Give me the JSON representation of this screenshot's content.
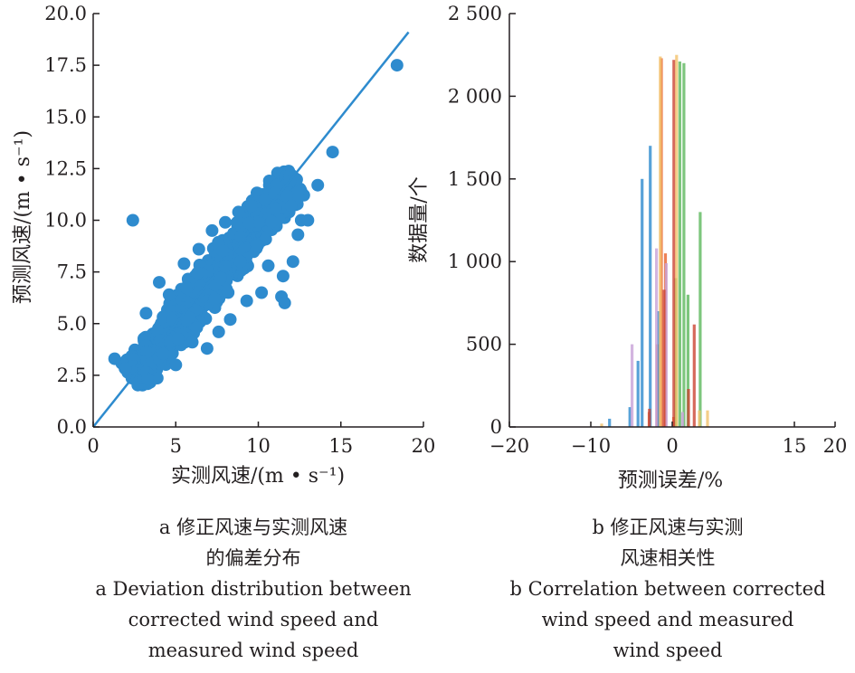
{
  "chart_data": [
    {
      "type": "scatter",
      "panel": "a",
      "xlabel": "实测风速/(m • s⁻¹)",
      "ylabel": "预测风速/(m • s⁻¹)",
      "xlim": [
        0,
        20
      ],
      "ylim": [
        0,
        20
      ],
      "x_ticks": [
        "0",
        "5",
        "10",
        "15",
        "20"
      ],
      "y_ticks": [
        "0.0",
        "2.5",
        "5.0",
        "7.5",
        "10.0",
        "12.5",
        "15.0",
        "17.5",
        "20.0"
      ],
      "point_color": "#2e8bce",
      "series": [
        {
          "name": "",
          "points": [
            [
              1.3,
              3.3
            ],
            [
              2.4,
              10.0
            ],
            [
              3.2,
              5.5
            ],
            [
              4.0,
              7.0
            ],
            [
              4.6,
              6.4
            ],
            [
              5.0,
              3.0
            ],
            [
              5.5,
              7.9
            ],
            [
              6.0,
              4.1
            ],
            [
              6.4,
              8.6
            ],
            [
              6.9,
              3.8
            ],
            [
              7.2,
              9.5
            ],
            [
              7.6,
              4.6
            ],
            [
              8.0,
              9.9
            ],
            [
              8.3,
              5.2
            ],
            [
              8.8,
              10.4
            ],
            [
              9.3,
              6.1
            ],
            [
              9.6,
              10.7
            ],
            [
              10.2,
              6.5
            ],
            [
              10.4,
              11.0
            ],
            [
              10.6,
              7.8
            ],
            [
              11.0,
              11.3
            ],
            [
              11.4,
              6.3
            ],
            [
              11.6,
              6.0
            ],
            [
              11.5,
              7.3
            ],
            [
              11.9,
              11.9
            ],
            [
              12.0,
              10.7
            ],
            [
              12.4,
              9.3
            ],
            [
              12.6,
              10.0
            ],
            [
              12.1,
              8.0
            ],
            [
              13.0,
              10.0
            ],
            [
              13.6,
              11.7
            ],
            [
              14.5,
              13.3
            ],
            [
              18.4,
              17.5
            ]
          ]
        }
      ],
      "fit_line": {
        "x": [
          0,
          19.1
        ],
        "y": [
          0,
          19.1
        ]
      }
    },
    {
      "type": "bar",
      "panel": "b",
      "xlabel": "预测误差/%",
      "ylabel": "数据量/个",
      "xlim": [
        -20,
        20
      ],
      "ylim": [
        0,
        2500
      ],
      "x_ticks": [
        "−20",
        "−10",
        "0",
        "15",
        "20"
      ],
      "y_ticks": [
        "0",
        "500",
        "1 000",
        "1 500",
        "2 000",
        "2 500"
      ],
      "series": [
        {
          "name": "",
          "color": "#e8622c",
          "bins": [
            [
              -2.5,
              90
            ],
            [
              -1.5,
              500
            ],
            [
              -1.0,
              2230
            ],
            [
              -0.5,
              1050
            ],
            [
              0.5,
              60
            ]
          ]
        },
        {
          "name": "",
          "color": "#2e8bce",
          "bins": [
            [
              -7.5,
              50
            ],
            [
              -5.0,
              120
            ],
            [
              -3.5,
              1500
            ],
            [
              -2.5,
              1700
            ],
            [
              -1.5,
              700
            ],
            [
              -4.0,
              400
            ]
          ]
        },
        {
          "name": "",
          "color": "#5cb85c",
          "bins": [
            [
              0.5,
              900
            ],
            [
              1.0,
              2210
            ],
            [
              1.5,
              2200
            ],
            [
              2.0,
              800
            ],
            [
              3.5,
              1300
            ]
          ]
        },
        {
          "name": "",
          "color": "#c8a2d8",
          "bins": [
            [
              -5.0,
              500
            ],
            [
              -2.0,
              1080
            ],
            [
              -0.8,
              990
            ],
            [
              1.2,
              90
            ]
          ]
        },
        {
          "name": "",
          "color": "#cc4433",
          "bins": [
            [
              -3.0,
              110
            ],
            [
              0.0,
              2220
            ],
            [
              -1.2,
              830
            ],
            [
              2.5,
              620
            ],
            [
              1.8,
              230
            ]
          ]
        },
        {
          "name": "",
          "color": "#f3c26b",
          "bins": [
            [
              -9.0,
              20
            ],
            [
              3.0,
              100
            ],
            [
              4.0,
              100
            ],
            [
              -1.8,
              2240
            ],
            [
              0.2,
              2250
            ]
          ]
        }
      ]
    }
  ],
  "captions": {
    "a": {
      "zh_line1": "a  修正风速与实测风速",
      "zh_line2": "的偏差分布",
      "en_line1": "a  Deviation distribution between",
      "en_line2": "corrected wind speed and",
      "en_line3": "measured wind speed"
    },
    "b": {
      "zh_line1": "b  修正风速与实测",
      "zh_line2": "风速相关性",
      "en_line1": "b  Correlation between corrected",
      "en_line2": "wind speed and measured",
      "en_line3": "wind speed"
    }
  }
}
